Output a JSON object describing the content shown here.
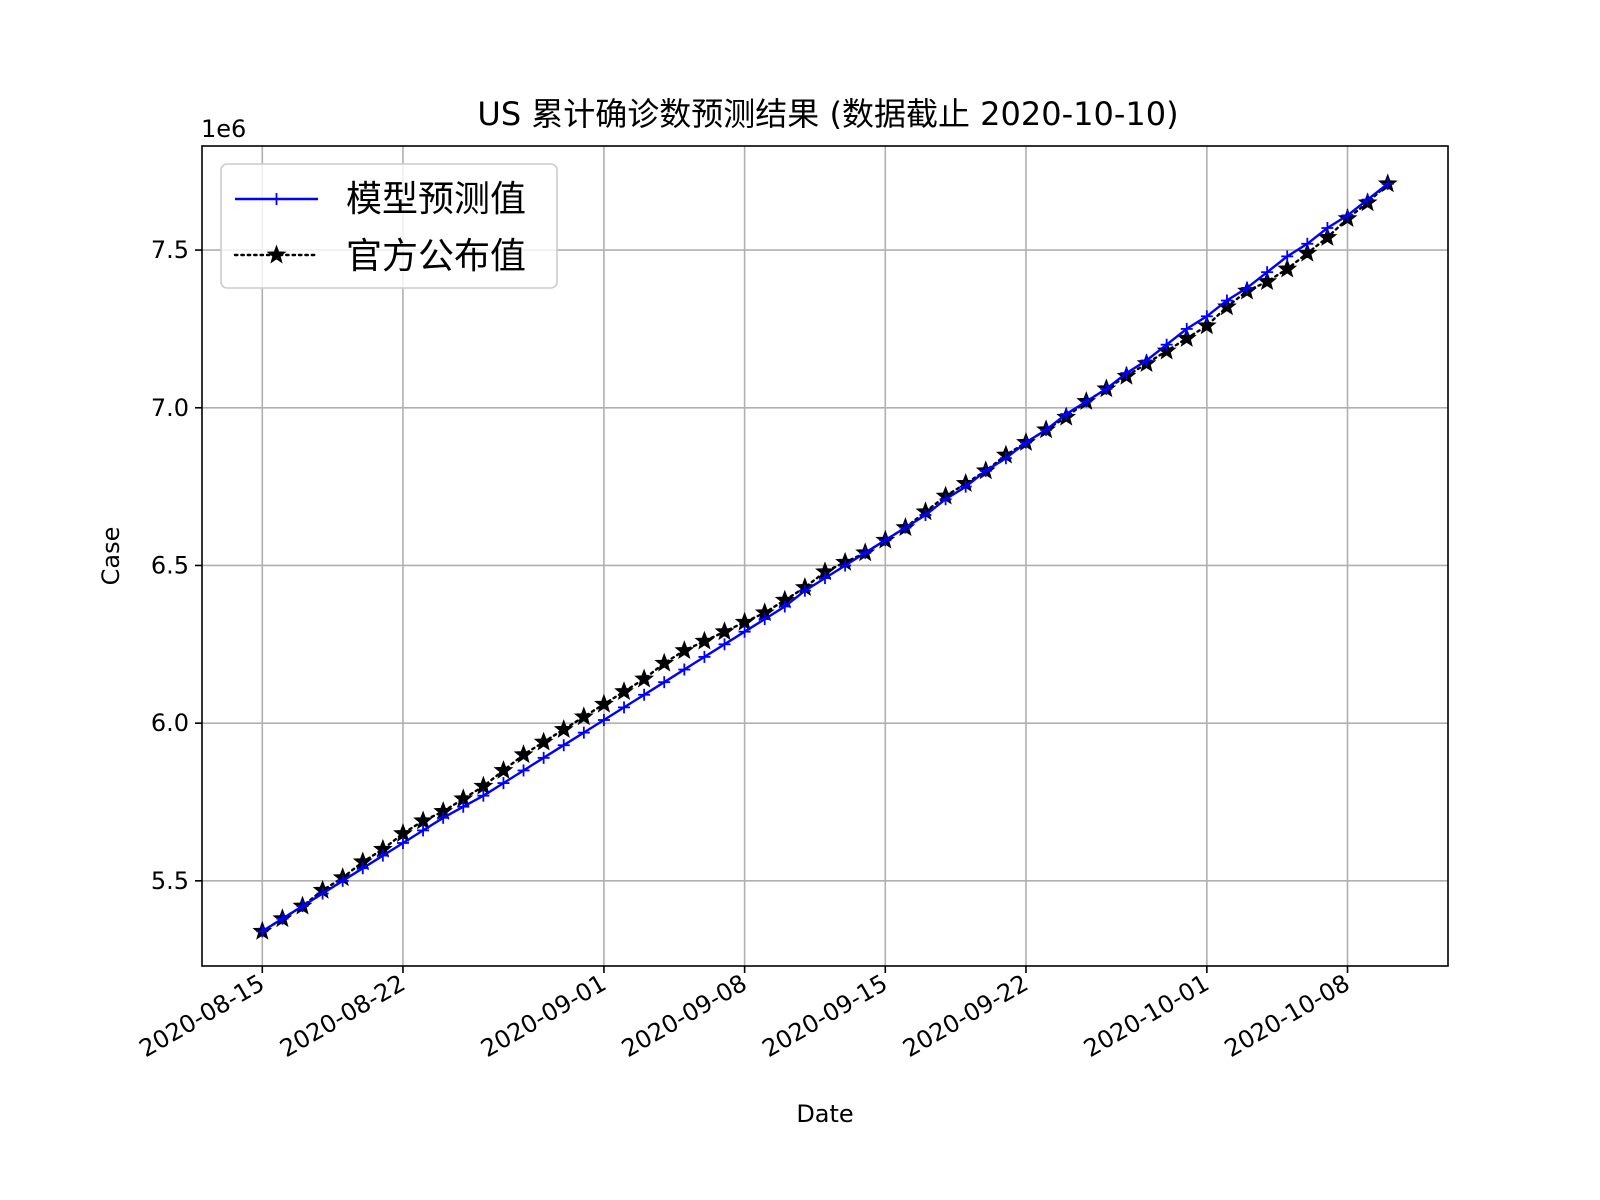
{
  "chart_data": {
    "type": "line",
    "title": "US 累计确诊数预测结果 (数据截止 2020-10-10)",
    "xlabel": "Date",
    "ylabel": "Case",
    "y_offset_label": "1e6",
    "y_scale": 1000000,
    "x_start": "2020-08-15",
    "x_range": [
      "2020-08-12",
      "2020-10-13"
    ],
    "ylim": [
      5.23,
      7.83
    ],
    "x_ticks": [
      "2020-08-15",
      "2020-08-22",
      "2020-09-01",
      "2020-09-08",
      "2020-09-15",
      "2020-09-22",
      "2020-10-01",
      "2020-10-08"
    ],
    "y_ticks": [
      5.5,
      6.0,
      6.5,
      7.0,
      7.5
    ],
    "y_tick_labels": [
      "5.5",
      "6.0",
      "6.5",
      "7.0",
      "7.5"
    ],
    "grid": true,
    "legend_position": "top-left",
    "series": [
      {
        "name": "模型预测值",
        "color": "#0000ff",
        "line_style": "solid",
        "marker": "plus",
        "values": [
          5.34,
          5.38,
          5.42,
          5.46,
          5.5,
          5.54,
          5.58,
          5.62,
          5.66,
          5.7,
          5.735,
          5.77,
          5.81,
          5.85,
          5.89,
          5.93,
          5.97,
          6.01,
          6.05,
          6.09,
          6.13,
          6.17,
          6.21,
          6.25,
          6.29,
          6.33,
          6.37,
          6.42,
          6.46,
          6.5,
          6.54,
          6.58,
          6.62,
          6.66,
          6.71,
          6.75,
          6.8,
          6.84,
          6.89,
          6.93,
          6.98,
          7.02,
          7.06,
          7.11,
          7.15,
          7.2,
          7.25,
          7.29,
          7.34,
          7.38,
          7.43,
          7.48,
          7.52,
          7.57,
          7.61,
          7.66,
          7.71
        ]
      },
      {
        "name": "官方公布值",
        "color": "#000000",
        "line_style": "dotted",
        "marker": "star",
        "values": [
          5.34,
          5.38,
          5.42,
          5.47,
          5.51,
          5.56,
          5.6,
          5.65,
          5.69,
          5.72,
          5.76,
          5.8,
          5.85,
          5.9,
          5.94,
          5.98,
          6.02,
          6.06,
          6.1,
          6.14,
          6.19,
          6.23,
          6.26,
          6.29,
          6.32,
          6.35,
          6.39,
          6.43,
          6.48,
          6.51,
          6.54,
          6.58,
          6.62,
          6.67,
          6.72,
          6.76,
          6.8,
          6.85,
          6.89,
          6.93,
          6.97,
          7.02,
          7.06,
          7.1,
          7.14,
          7.18,
          7.22,
          7.26,
          7.32,
          7.37,
          7.4,
          7.44,
          7.49,
          7.54,
          7.6,
          7.65,
          7.71
        ]
      }
    ]
  }
}
